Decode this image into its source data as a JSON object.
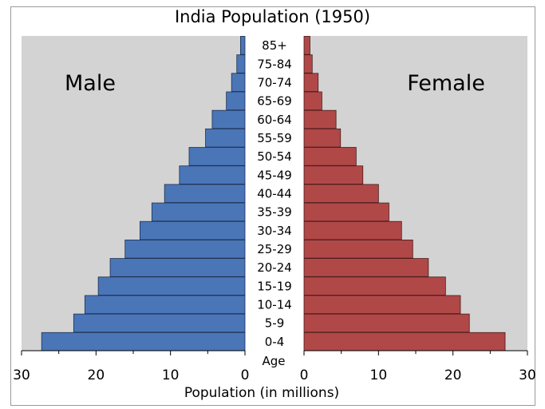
{
  "chart_data": {
    "type": "bar",
    "title": "India Population (1950)",
    "xlabel": "Population (in millions)",
    "age_header": "Age",
    "male_label": "Male",
    "female_label": "Female",
    "categories": [
      "0-4",
      "5-9",
      "10-14",
      "15-19",
      "20-24",
      "25-29",
      "30-34",
      "35-39",
      "40-44",
      "45-49",
      "50-54",
      "55-59",
      "60-64",
      "65-69",
      "70-74",
      "75-84",
      "85+"
    ],
    "series": [
      {
        "name": "Male",
        "values": [
          27.3,
          23.0,
          21.5,
          19.7,
          18.1,
          16.1,
          14.1,
          12.5,
          10.8,
          8.8,
          7.5,
          5.3,
          4.4,
          2.5,
          1.8,
          1.1,
          0.6
        ],
        "color": "#4a76b8"
      },
      {
        "name": "Female",
        "values": [
          27.0,
          22.2,
          21.0,
          19.0,
          16.7,
          14.6,
          13.1,
          11.4,
          10.0,
          7.9,
          7.0,
          4.9,
          4.3,
          2.4,
          1.9,
          1.1,
          0.8
        ],
        "color": "#b04848"
      }
    ],
    "xlim": [
      0,
      30
    ],
    "ticks": [
      0,
      10,
      20,
      30
    ],
    "grid": false
  }
}
